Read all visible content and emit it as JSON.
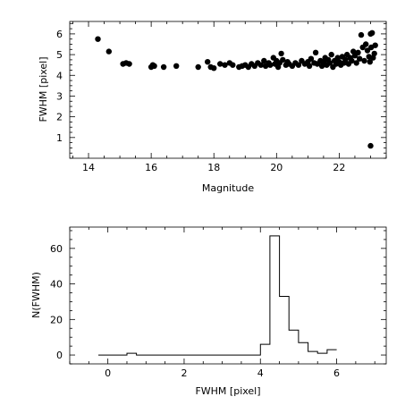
{
  "chart_data": [
    {
      "type": "scatter",
      "xlabel": "Magnitude",
      "ylabel": "FWHM [pixel]",
      "xlim": [
        13.4,
        23.5
      ],
      "ylim": [
        0,
        6.6
      ],
      "xticks": [
        14,
        16,
        18,
        20,
        22
      ],
      "yticks": [
        1,
        2,
        3,
        4,
        5,
        6
      ],
      "points": [
        [
          14.3,
          5.75
        ],
        [
          14.65,
          5.15
        ],
        [
          15.1,
          4.55
        ],
        [
          15.2,
          4.6
        ],
        [
          15.3,
          4.55
        ],
        [
          16.0,
          4.4
        ],
        [
          16.05,
          4.5
        ],
        [
          16.1,
          4.45
        ],
        [
          16.4,
          4.4
        ],
        [
          16.8,
          4.45
        ],
        [
          17.5,
          4.4
        ],
        [
          17.8,
          4.65
        ],
        [
          17.9,
          4.4
        ],
        [
          18.0,
          4.35
        ],
        [
          18.2,
          4.55
        ],
        [
          18.35,
          4.5
        ],
        [
          18.5,
          4.6
        ],
        [
          18.6,
          4.5
        ],
        [
          18.8,
          4.4
        ],
        [
          18.9,
          4.45
        ],
        [
          19.0,
          4.5
        ],
        [
          19.1,
          4.4
        ],
        [
          19.2,
          4.55
        ],
        [
          19.3,
          4.45
        ],
        [
          19.4,
          4.6
        ],
        [
          19.5,
          4.5
        ],
        [
          19.6,
          4.7
        ],
        [
          19.65,
          4.45
        ],
        [
          19.75,
          4.6
        ],
        [
          19.8,
          4.5
        ],
        [
          19.9,
          4.85
        ],
        [
          19.95,
          4.55
        ],
        [
          20.0,
          4.7
        ],
        [
          20.05,
          4.4
        ],
        [
          20.1,
          4.6
        ],
        [
          20.15,
          5.05
        ],
        [
          20.2,
          4.75
        ],
        [
          20.3,
          4.5
        ],
        [
          20.35,
          4.65
        ],
        [
          20.4,
          4.55
        ],
        [
          20.5,
          4.45
        ],
        [
          20.6,
          4.6
        ],
        [
          20.7,
          4.5
        ],
        [
          20.8,
          4.7
        ],
        [
          20.9,
          4.55
        ],
        [
          21.0,
          4.65
        ],
        [
          21.05,
          4.45
        ],
        [
          21.1,
          4.8
        ],
        [
          21.2,
          4.6
        ],
        [
          21.25,
          5.1
        ],
        [
          21.3,
          4.55
        ],
        [
          21.4,
          4.7
        ],
        [
          21.45,
          4.45
        ],
        [
          21.5,
          4.65
        ],
        [
          21.55,
          4.85
        ],
        [
          21.6,
          4.5
        ],
        [
          21.65,
          4.75
        ],
        [
          21.7,
          4.6
        ],
        [
          21.75,
          5.0
        ],
        [
          21.8,
          4.4
        ],
        [
          21.85,
          4.7
        ],
        [
          21.9,
          4.55
        ],
        [
          21.95,
          4.85
        ],
        [
          22.0,
          4.65
        ],
        [
          22.05,
          4.5
        ],
        [
          22.1,
          4.9
        ],
        [
          22.15,
          4.6
        ],
        [
          22.2,
          4.75
        ],
        [
          22.25,
          5.0
        ],
        [
          22.3,
          4.55
        ],
        [
          22.35,
          4.85
        ],
        [
          22.4,
          4.7
        ],
        [
          22.45,
          5.15
        ],
        [
          22.5,
          4.95
        ],
        [
          22.55,
          4.6
        ],
        [
          22.6,
          5.1
        ],
        [
          22.65,
          4.8
        ],
        [
          22.7,
          5.95
        ],
        [
          22.75,
          5.35
        ],
        [
          22.8,
          4.7
        ],
        [
          22.85,
          5.5
        ],
        [
          22.9,
          5.2
        ],
        [
          22.95,
          4.9
        ],
        [
          22.98,
          4.65
        ],
        [
          23.0,
          6.0
        ],
        [
          23.02,
          5.35
        ],
        [
          23.05,
          6.05
        ],
        [
          23.08,
          4.85
        ],
        [
          23.12,
          5.05
        ],
        [
          23.15,
          5.45
        ],
        [
          23.0,
          0.6
        ]
      ]
    },
    {
      "type": "histogram",
      "xlabel": "FWHM [pixel]",
      "ylabel": "N(FWHM)",
      "xlim": [
        -1.0,
        7.3
      ],
      "ylim": [
        -5,
        72
      ],
      "xticks": [
        0,
        2,
        4,
        6
      ],
      "yticks": [
        0,
        20,
        40,
        60
      ],
      "bin_edges": [
        -0.25,
        0.25,
        0.5,
        0.75,
        1.0,
        4.0,
        4.25,
        4.5,
        4.75,
        5.0,
        5.25,
        5.5,
        5.75,
        6.0
      ],
      "counts": [
        0,
        0,
        1,
        0,
        0,
        6,
        67,
        33,
        14,
        7,
        2,
        1,
        3
      ]
    }
  ]
}
